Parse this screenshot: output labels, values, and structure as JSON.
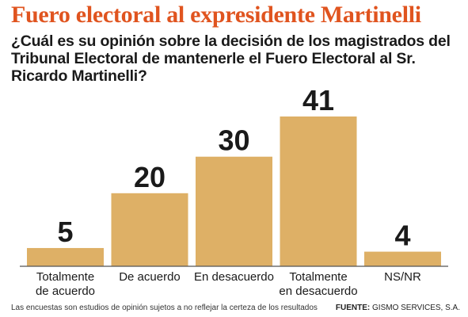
{
  "header": {
    "title": "Fuero electoral al expresidente Martinelli",
    "question": "¿Cuál es su opinión sobre la decisión de los magistrados del Tribunal Electoral de mantenerle el Fuero Electoral al Sr. Ricardo Martinelli?"
  },
  "chart_data": {
    "type": "bar",
    "categories": [
      [
        "Totalmente",
        "de acuerdo"
      ],
      [
        "De acuerdo"
      ],
      [
        "En desacuerdo"
      ],
      [
        "Totalmente",
        "en desacuerdo"
      ],
      [
        "NS/NR"
      ]
    ],
    "values": [
      5,
      20,
      30,
      41,
      4
    ],
    "ylim": [
      0,
      41
    ],
    "grid": false,
    "legend": "none",
    "bar_color": "#deb066",
    "baseline_color": "#555555",
    "title": "",
    "xlabel": "",
    "ylabel": ""
  },
  "footer": {
    "note": "Las encuestas son estudios de opinión sujetos a no reflejar la certeza de los resultados",
    "source_label": "FUENTE:",
    "source_value": " GISMO SERVICES, S.A."
  },
  "colors": {
    "title": "#e0541f",
    "text": "#1a1a1a"
  }
}
